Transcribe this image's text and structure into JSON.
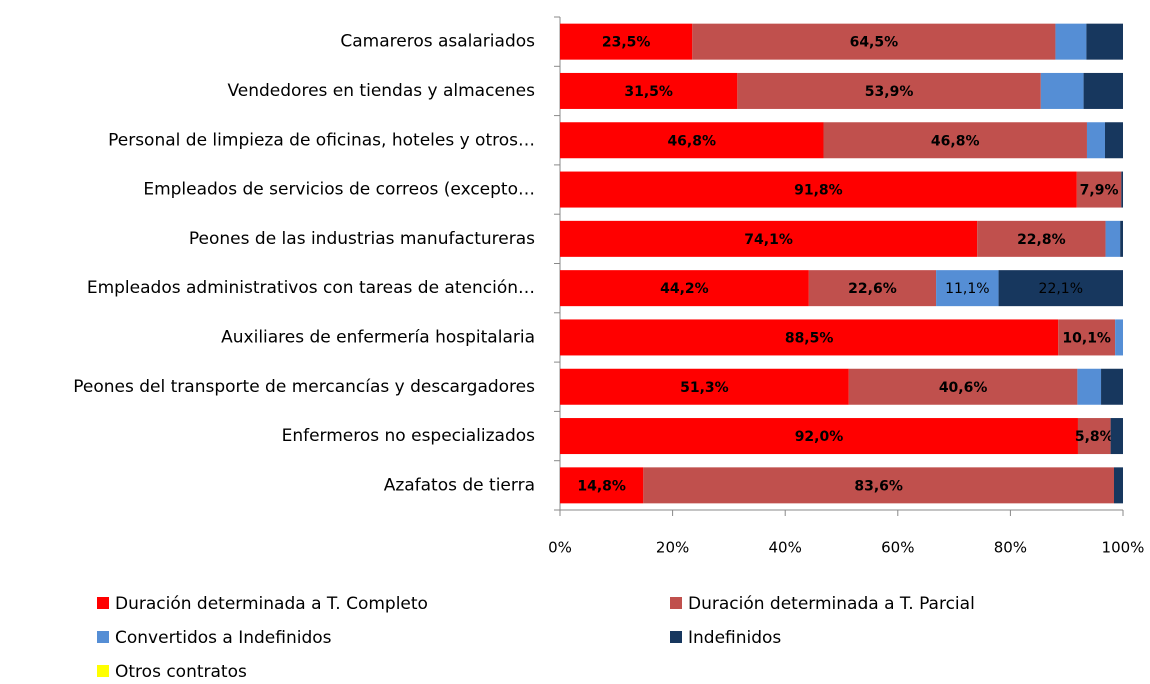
{
  "chart_data": {
    "type": "stacked-bar-horizontal",
    "categories": [
      "Camareros asalariados",
      "Vendedores en tiendas y almacenes",
      "Personal de limpieza de oficinas, hoteles y otros…",
      "Empleados de servicios de correos (excepto…",
      "Peones de las industrias manufactureras",
      "Empleados administrativos con tareas de atención…",
      "Auxiliares de enfermería hospitalaria",
      "Peones del transporte de mercancías y descargadores",
      "Enfermeros no especializados",
      "Azafatos de tierra"
    ],
    "series": [
      {
        "name": "Duración determinada a T. Completo",
        "color": "#ff0000",
        "values": [
          23.5,
          31.5,
          46.8,
          91.8,
          74.1,
          44.2,
          88.5,
          51.3,
          92.0,
          14.8
        ],
        "value_labels": [
          "23,5%",
          "31,5%",
          "46,8%",
          "91,8%",
          "74,1%",
          "44,2%",
          "88,5%",
          "51,3%",
          "92,0%",
          "14,8%"
        ]
      },
      {
        "name": "Duración determinada a T. Parcial",
        "color": "#c0504d",
        "values": [
          64.5,
          53.9,
          46.8,
          7.9,
          22.8,
          22.6,
          10.1,
          40.6,
          5.8,
          83.6
        ],
        "value_labels": [
          "64,5%",
          "53,9%",
          "46,8%",
          "7,9%",
          "22,8%",
          "22,6%",
          "10,1%",
          "40,6%",
          "5,8%",
          "83,6%"
        ]
      },
      {
        "name": "Convertidos a Indefinidos",
        "color": "#558ed5",
        "values": [
          5.5,
          7.6,
          3.2,
          0,
          2.6,
          11.1,
          1.4,
          4.2,
          0,
          0
        ],
        "value_labels": [
          null,
          null,
          null,
          null,
          null,
          "11,1%",
          null,
          null,
          null,
          null
        ]
      },
      {
        "name": "Indefinidos",
        "color": "#17375e",
        "values": [
          6.5,
          7.0,
          3.2,
          0.3,
          0.5,
          22.1,
          0,
          3.9,
          2.2,
          1.6
        ],
        "value_labels": [
          null,
          null,
          null,
          null,
          null,
          "22,1%",
          null,
          null,
          null,
          null
        ]
      },
      {
        "name": "Otros contratos",
        "color": "#ffff00",
        "values": [
          0,
          0,
          0,
          0,
          0,
          0,
          0,
          0,
          0,
          0
        ]
      }
    ],
    "xlim": [
      0,
      100
    ],
    "xticks": [
      {
        "value": 0,
        "label": "0%"
      },
      {
        "value": 20,
        "label": "20%"
      },
      {
        "value": 40,
        "label": "40%"
      },
      {
        "value": 60,
        "label": "60%"
      },
      {
        "value": 80,
        "label": "80%"
      },
      {
        "value": 100,
        "label": "100%"
      }
    ]
  }
}
